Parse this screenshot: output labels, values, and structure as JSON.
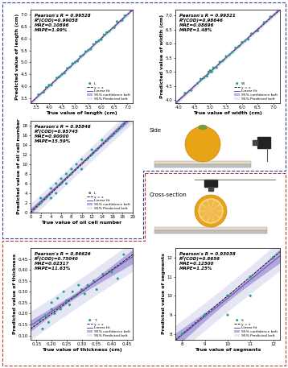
{
  "chart_data": [
    {
      "type": "scatter",
      "xlabel": "True value of length (cm)",
      "ylabel": "Predicted value of length (cm)",
      "annotations": [
        "Pearson's R = 0.99528",
        "R²(COD)=0.99058",
        "MAE=0.10896",
        "MAPE=1.99%"
      ],
      "xlim": [
        3.3,
        7.2
      ],
      "ylim": [
        3.3,
        7.2
      ],
      "xticks": [
        3.5,
        {
          "value": 4.0,
          "label": "4.0"
        },
        4.5,
        {
          "value": 5.0,
          "label": "5.0"
        },
        5.5,
        {
          "value": 6.0,
          "label": "6.0"
        },
        6.5,
        {
          "value": 7.0,
          "label": "7.0"
        }
      ],
      "yticks": [
        3.5,
        {
          "value": 4.0,
          "label": "4.0"
        },
        4.5,
        {
          "value": 5.0,
          "label": "5.0"
        },
        5.5,
        {
          "value": 6.0,
          "label": "6.0"
        },
        6.5,
        {
          "value": 7.0,
          "label": "7.0"
        }
      ],
      "legend": "lower right",
      "grid": false,
      "series": [
        {
          "name": "Lᵢ",
          "type": "scatter",
          "marker": "circle",
          "color": "#2a9d8f",
          "x": [
            3.6,
            3.8,
            3.9,
            4.0,
            4.1,
            4.3,
            4.4,
            4.5,
            4.6,
            4.7,
            4.8,
            4.9,
            5.0,
            5.1,
            5.2,
            5.3,
            5.4,
            5.5,
            5.6,
            5.7,
            5.8,
            5.9,
            6.0,
            6.1,
            6.2,
            6.3,
            6.5,
            6.6,
            6.8,
            6.9
          ],
          "values": [
            3.65,
            3.75,
            3.95,
            4.05,
            4.05,
            4.35,
            4.4,
            4.5,
            4.55,
            4.75,
            4.8,
            4.95,
            5.0,
            5.05,
            5.25,
            5.3,
            5.45,
            5.5,
            5.55,
            5.75,
            5.85,
            5.9,
            5.95,
            6.15,
            6.25,
            6.3,
            6.45,
            6.7,
            6.75,
            6.95
          ]
        },
        {
          "name": "y = x",
          "type": "identity",
          "line_style": "dashed",
          "color": "#000000"
        },
        {
          "name": "Linear fit",
          "type": "fit",
          "color": "#7b3fa0"
        },
        {
          "name": "95% confidence belt",
          "type": "confidence band",
          "color": "#8a7fd0"
        },
        {
          "name": "95% Predicted belt",
          "type": "prediction band",
          "color": "#d3d6ee"
        }
      ]
    },
    {
      "type": "scatter",
      "xlabel": "True value of width (cm)",
      "ylabel": "Predicted value of width (cm)",
      "annotations": [
        "Pearson's R = 0.99321",
        "R²(COD)=0.98646",
        "MAE=0.08696",
        "MAPE=1.48%"
      ],
      "xlim": [
        3.9,
        7.2
      ],
      "ylim": [
        3.9,
        7.2
      ],
      "xticks": [
        {
          "value": 4.0,
          "label": "4.0"
        },
        4.5,
        {
          "value": 5.0,
          "label": "5.0"
        },
        5.5,
        {
          "value": 6.0,
          "label": "6.0"
        },
        6.5,
        {
          "value": 7.0,
          "label": "7.0"
        }
      ],
      "yticks": [
        {
          "value": 4.0,
          "label": "4.0"
        },
        4.5,
        {
          "value": 5.0,
          "label": "5.0"
        },
        5.5,
        {
          "value": 6.0,
          "label": "6.0"
        },
        6.5,
        {
          "value": 7.0,
          "label": "7.0"
        }
      ],
      "legend": "lower right",
      "grid": false,
      "series": [
        {
          "name": "Wᵢ",
          "type": "scatter",
          "marker": "circle",
          "color": "#2a9d8f",
          "x": [
            4.2,
            4.4,
            4.6,
            4.7,
            4.8,
            4.9,
            4.95,
            5.0,
            5.05,
            5.1,
            5.2,
            5.3,
            5.4,
            5.5,
            5.6,
            5.7,
            5.8,
            5.9,
            6.0,
            6.1,
            6.2,
            6.3,
            6.5,
            6.7,
            6.9
          ],
          "values": [
            4.25,
            4.35,
            4.6,
            4.75,
            4.8,
            4.85,
            5.0,
            5.05,
            5.0,
            5.15,
            5.15,
            5.35,
            5.4,
            5.55,
            5.6,
            5.7,
            5.85,
            5.9,
            6.05,
            6.1,
            6.15,
            6.35,
            6.45,
            6.75,
            6.95
          ]
        },
        {
          "name": "y = x",
          "type": "identity",
          "line_style": "dashed",
          "color": "#000000"
        },
        {
          "name": "Linear fit",
          "type": "fit",
          "color": "#7b3fa0"
        },
        {
          "name": "95% confidence belt",
          "type": "confidence band",
          "color": "#8a7fd0"
        },
        {
          "name": "95% Predicted belt",
          "type": "prediction band",
          "color": "#d3d6ee"
        }
      ]
    },
    {
      "type": "scatter",
      "xlabel": "True value of oil cell number",
      "ylabel": "Predicted value of oil cell number",
      "annotations": [
        "Pearson's R = 0.95846",
        "R²(COD)=0.95745",
        "MAE=0.90000",
        "MAPE=15.59%"
      ],
      "xlim": [
        0,
        20
      ],
      "ylim": [
        0,
        19
      ],
      "xticks": [
        0,
        2,
        4,
        6,
        8,
        10,
        12,
        14,
        16,
        18,
        20
      ],
      "yticks": [
        0,
        2,
        4,
        6,
        8,
        10,
        12,
        14,
        16,
        18
      ],
      "legend": "lower right",
      "grid": false,
      "series": [
        {
          "name": "Lᵢ",
          "type": "scatter",
          "marker": "circle",
          "color": "#2a9d8f",
          "x": [
            2,
            2,
            3,
            4,
            4,
            5,
            5,
            6,
            6,
            7,
            7,
            8,
            8,
            9,
            10,
            10,
            11,
            12,
            12,
            13,
            14,
            15,
            16,
            17,
            18
          ],
          "values": [
            3,
            2,
            3,
            3,
            5,
            4,
            6,
            6,
            7,
            6,
            8,
            8,
            9,
            10,
            9,
            11,
            11,
            12,
            13,
            13,
            15,
            15,
            16,
            17,
            18
          ]
        },
        {
          "name": "y = x",
          "type": "identity",
          "line_style": "dashed",
          "color": "#000000"
        },
        {
          "name": "Linear fit",
          "type": "fit",
          "color": "#7b3fa0"
        },
        {
          "name": "95% confidence belt",
          "type": "confidence band",
          "color": "#8a7fd0"
        },
        {
          "name": "95% Predicted belt",
          "type": "prediction band",
          "color": "#d3d6ee"
        }
      ]
    },
    {
      "type": "scatter",
      "xlabel": "True value of thickness (cm)",
      "ylabel": "Predicted value of thickness",
      "annotations": [
        "Pearson's R = 0.86626",
        "R²(COD)=0.75040",
        "MAE=0.02317",
        "MAPE=11.63%"
      ],
      "xlim": [
        0.13,
        0.47
      ],
      "ylim": [
        0.08,
        0.5
      ],
      "xticks": [
        0.15,
        {
          "value": 0.2,
          "label": "0.20"
        },
        0.25,
        {
          "value": 0.3,
          "label": "0.30"
        },
        0.35,
        {
          "value": 0.4,
          "label": "0.40"
        },
        0.45
      ],
      "yticks": [
        {
          "value": 0.1,
          "label": "0.10"
        },
        0.15,
        {
          "value": 0.2,
          "label": "0.20"
        },
        0.25,
        {
          "value": 0.3,
          "label": "0.30"
        },
        0.35,
        {
          "value": 0.4,
          "label": "0.40"
        },
        0.45
      ],
      "legend": "lower right",
      "grid": false,
      "series": [
        {
          "name": "Tᵢ",
          "type": "scatter",
          "marker": "circle",
          "color": "#2a9d8f",
          "x": [
            0.16,
            0.17,
            0.18,
            0.19,
            0.2,
            0.2,
            0.21,
            0.22,
            0.23,
            0.24,
            0.25,
            0.26,
            0.27,
            0.28,
            0.29,
            0.3,
            0.31,
            0.32,
            0.34,
            0.35,
            0.37,
            0.4,
            0.42,
            0.44
          ],
          "values": [
            0.17,
            0.13,
            0.19,
            0.16,
            0.22,
            0.25,
            0.2,
            0.27,
            0.22,
            0.3,
            0.26,
            0.24,
            0.3,
            0.28,
            0.33,
            0.31,
            0.29,
            0.33,
            0.35,
            0.31,
            0.38,
            0.39,
            0.36,
            0.47
          ]
        },
        {
          "name": "y = x",
          "type": "identity",
          "line_style": "dashed",
          "color": "#000000"
        },
        {
          "name": "Linear fit",
          "type": "fit",
          "color": "#7b3fa0"
        },
        {
          "name": "95% confidence belt",
          "type": "confidence band",
          "color": "#8a7fd0"
        },
        {
          "name": "95% Predicted belt",
          "type": "prediction band",
          "color": "#d3d6ee"
        }
      ]
    },
    {
      "type": "scatter",
      "xlabel": "True value of segments",
      "ylabel": "Predicted value of segments",
      "annotations": [
        "Pearson's R = 0.93038",
        "R²(COD)=0.8656",
        "MAE=0.12500",
        "MAPE=1.25%"
      ],
      "xlim": [
        7.7,
        12.3
      ],
      "ylim": [
        7.7,
        12.5
      ],
      "xticks": [
        8,
        9,
        10,
        11,
        12
      ],
      "yticks": [
        8,
        9,
        10,
        11,
        12
      ],
      "legend": "lower right",
      "grid": false,
      "series": [
        {
          "name": "Sᵢ",
          "type": "scatter",
          "marker": "circle",
          "color": "#2a9d8f",
          "x": [
            8,
            8,
            9,
            9,
            9,
            10,
            10,
            10,
            10,
            10,
            11,
            11,
            11,
            11,
            12,
            12
          ],
          "values": [
            8,
            8,
            9,
            9,
            9,
            10,
            10,
            10,
            10,
            9,
            11,
            11,
            11,
            10,
            12,
            12
          ]
        },
        {
          "name": "y = x",
          "type": "identity",
          "line_style": "dashed",
          "color": "#000000"
        },
        {
          "name": "Linear fit",
          "type": "fit",
          "color": "#7b3fa0"
        },
        {
          "name": "95% confidence belt",
          "type": "confidence band",
          "color": "#8a7fd0"
        },
        {
          "name": "95% Predicted belt",
          "type": "prediction band",
          "color": "#d3d6ee"
        }
      ]
    }
  ],
  "diagram": {
    "side": {
      "label": "Side"
    },
    "cross_section": {
      "label": "Cross-section"
    }
  }
}
